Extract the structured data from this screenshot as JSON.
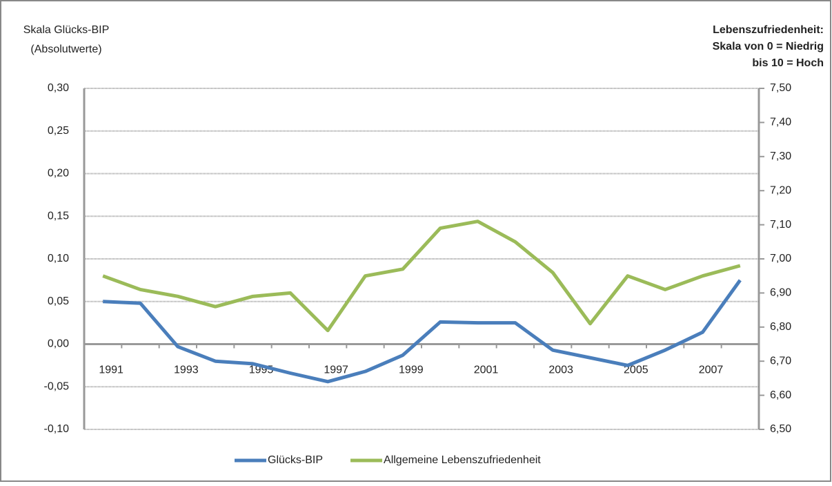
{
  "chart_data": {
    "type": "line",
    "y_label": [
      "Skala Glücks-BIP",
      "(Absolutwerte)"
    ],
    "y2_label": [
      "Lebenszufriedenheit:",
      "Skala von 0 = Niedrig",
      "bis 10 = Hoch"
    ],
    "categories": [
      "1991",
      null,
      "1993",
      null,
      "1995",
      null,
      "1997",
      null,
      "1999",
      null,
      "2001",
      null,
      "2003",
      null,
      "2005",
      null,
      "2007",
      null
    ],
    "series": [
      {
        "name": "Glücks-BIP",
        "color": "#4a7ebb",
        "axis": "y",
        "values": [
          0.05,
          0.048,
          -0.003,
          -0.02,
          -0.023,
          -0.034,
          -0.044,
          -0.032,
          -0.013,
          0.026,
          0.025,
          0.025,
          -0.007,
          -0.016,
          -0.025,
          -0.007,
          0.014,
          0.075
        ]
      },
      {
        "name": "Allgemeine Lebenszufriedenheit",
        "color": "#9bbb59",
        "axis": "y2",
        "values": [
          6.95,
          6.91,
          6.89,
          6.86,
          6.89,
          6.9,
          6.79,
          6.95,
          6.97,
          7.09,
          7.11,
          7.05,
          6.96,
          6.81,
          6.95,
          6.91,
          6.95,
          6.98
        ]
      }
    ],
    "ylim": [
      -0.1,
      0.3
    ],
    "yticks": [
      {
        "value": -0.1,
        "label": "-0,10"
      },
      {
        "value": -0.05,
        "label": "-0,05"
      },
      {
        "value": 0,
        "label": "0,00"
      },
      {
        "value": 0.05,
        "label": "0,05"
      },
      {
        "value": 0.1,
        "label": "0,10"
      },
      {
        "value": 0.15,
        "label": "0,15"
      },
      {
        "value": 0.2,
        "label": "0,20"
      },
      {
        "value": 0.25,
        "label": "0,25"
      },
      {
        "value": 0.3,
        "label": "0,30"
      }
    ],
    "y2lim": [
      6.5,
      7.5
    ],
    "y2ticks": [
      {
        "value": 6.5,
        "label": "6,50"
      },
      {
        "value": 6.6,
        "label": "6,60"
      },
      {
        "value": 6.7,
        "label": "6,70"
      },
      {
        "value": 6.8,
        "label": "6,80"
      },
      {
        "value": 6.9,
        "label": "6,90"
      },
      {
        "value": 7.0,
        "label": "7,00"
      },
      {
        "value": 7.1,
        "label": "7,10"
      },
      {
        "value": 7.2,
        "label": "7,20"
      },
      {
        "value": 7.3,
        "label": "7,30"
      },
      {
        "value": 7.4,
        "label": "7,40"
      },
      {
        "value": 7.5,
        "label": "7,50"
      }
    ],
    "grid": true,
    "legend": "bottom"
  }
}
